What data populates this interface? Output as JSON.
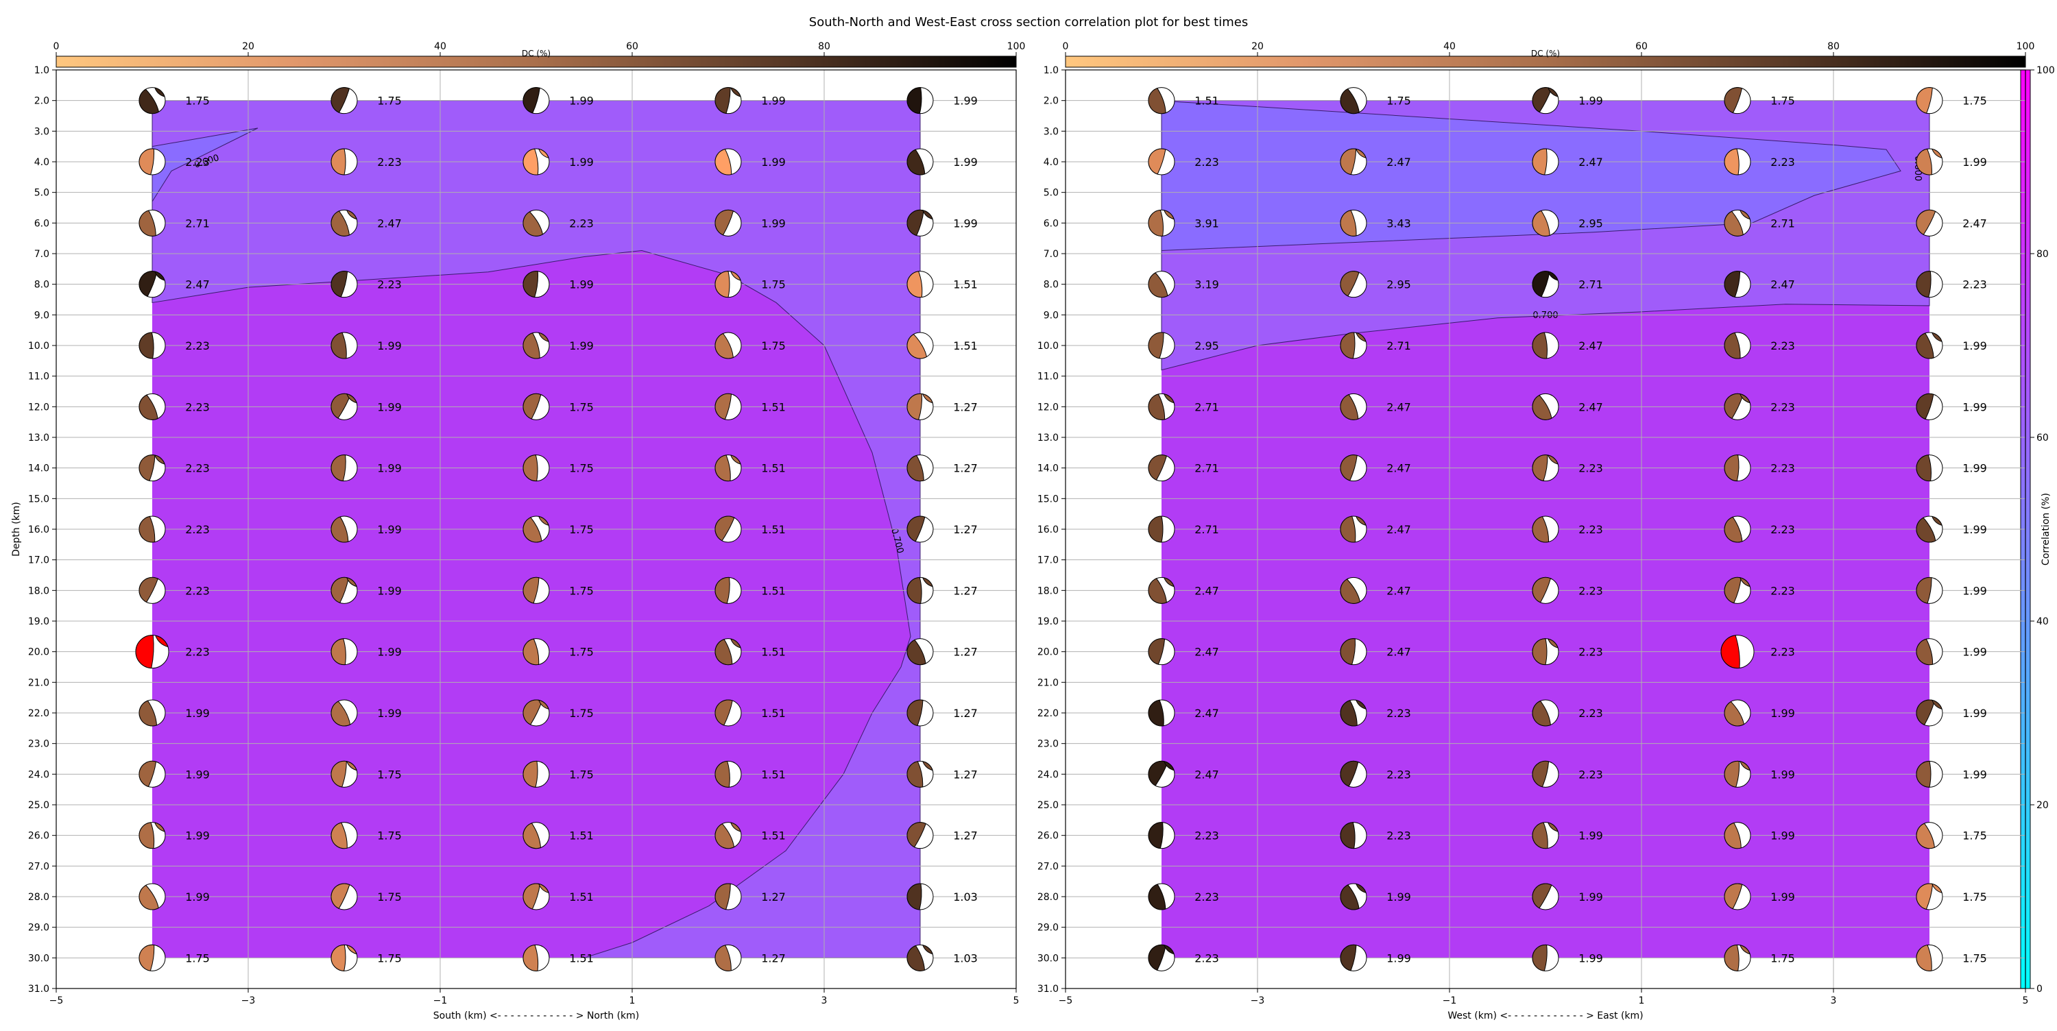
{
  "title": "South-North and West-East cross section correlation plot for best times",
  "dc_colorbar": {
    "label": "DC (%)",
    "ticks": [
      "0",
      "20",
      "40",
      "60",
      "80",
      "100"
    ],
    "colormap": "copper_r",
    "range": [
      0,
      100
    ]
  },
  "correlation_colorbar": {
    "label": "Correlation (%)",
    "ticks": [
      "0",
      "20",
      "40",
      "60",
      "80",
      "100"
    ],
    "colormap": "cool",
    "range": [
      0,
      100
    ]
  },
  "chart_data": [
    {
      "type": "heatmap",
      "panel": "south-north",
      "xlabel": "South (km) <- - - - - - - - - - - - > North (km)",
      "ylabel": "Depth (km)",
      "xlim": [
        -5,
        5
      ],
      "ylim": [
        31,
        1
      ],
      "x_ticks": [
        "−5",
        "−3",
        "−1",
        "1",
        "3",
        "5"
      ],
      "y_ticks": [
        "1.0",
        "2.0",
        "3.0",
        "4.0",
        "5.0",
        "6.0",
        "7.0",
        "8.0",
        "9.0",
        "10.0",
        "11.0",
        "12.0",
        "13.0",
        "14.0",
        "15.0",
        "16.0",
        "17.0",
        "18.0",
        "19.0",
        "20.0",
        "21.0",
        "22.0",
        "23.0",
        "24.0",
        "25.0",
        "26.0",
        "27.0",
        "28.0",
        "29.0",
        "30.0",
        "31.0"
      ],
      "grid": true,
      "x": [
        -4,
        -2,
        0,
        2,
        4
      ],
      "depths": [
        2,
        4,
        6,
        8,
        10,
        12,
        14,
        16,
        18,
        20,
        22,
        24,
        26,
        28,
        30
      ],
      "time_labels": [
        [
          "1.75",
          "1.75",
          "1.99",
          "1.99",
          "1.99"
        ],
        [
          "2.23",
          "2.23",
          "1.99",
          "1.99",
          "1.99"
        ],
        [
          "2.71",
          "2.47",
          "2.23",
          "1.99",
          "1.99"
        ],
        [
          "2.47",
          "2.23",
          "1.99",
          "1.75",
          "1.51"
        ],
        [
          "2.23",
          "1.99",
          "1.99",
          "1.75",
          "1.51"
        ],
        [
          "2.23",
          "1.99",
          "1.75",
          "1.51",
          "1.27"
        ],
        [
          "2.23",
          "1.99",
          "1.75",
          "1.51",
          "1.27"
        ],
        [
          "2.23",
          "1.99",
          "1.75",
          "1.51",
          "1.27"
        ],
        [
          "2.23",
          "1.99",
          "1.75",
          "1.51",
          "1.27"
        ],
        [
          "2.23",
          "1.99",
          "1.75",
          "1.51",
          "1.27"
        ],
        [
          "1.99",
          "1.99",
          "1.75",
          "1.51",
          "1.27"
        ],
        [
          "1.99",
          "1.75",
          "1.75",
          "1.51",
          "1.27"
        ],
        [
          "1.99",
          "1.75",
          "1.51",
          "1.51",
          "1.27"
        ],
        [
          "1.99",
          "1.75",
          "1.51",
          "1.27",
          "1.03"
        ],
        [
          "1.75",
          "1.75",
          "1.51",
          "1.27",
          "1.03"
        ]
      ],
      "dc_percent": [
        [
          80,
          75,
          85,
          70,
          90
        ],
        [
          30,
          30,
          20,
          20,
          80
        ],
        [
          50,
          50,
          50,
          50,
          75
        ],
        [
          85,
          75,
          70,
          30,
          25
        ],
        [
          70,
          60,
          50,
          40,
          30
        ],
        [
          60,
          55,
          50,
          45,
          40
        ],
        [
          55,
          50,
          45,
          45,
          60
        ],
        [
          55,
          50,
          45,
          50,
          65
        ],
        [
          55,
          50,
          45,
          50,
          65
        ],
        [
          50,
          40,
          40,
          55,
          70
        ],
        [
          55,
          45,
          45,
          50,
          65
        ],
        [
          50,
          40,
          40,
          50,
          60
        ],
        [
          45,
          35,
          40,
          45,
          60
        ],
        [
          40,
          35,
          40,
          50,
          75
        ],
        [
          35,
          30,
          35,
          45,
          70
        ]
      ],
      "best_solution": {
        "x": -4,
        "depth": 20
      },
      "contour_labels": [
        "0.600",
        "0.700"
      ]
    },
    {
      "type": "heatmap",
      "panel": "west-east",
      "xlabel": "West (km) <- - - - - - - - - - - - > East (km)",
      "ylabel": "",
      "xlim": [
        -5,
        5
      ],
      "ylim": [
        31,
        1
      ],
      "x_ticks": [
        "−5",
        "−3",
        "−1",
        "1",
        "3",
        "5"
      ],
      "y_ticks": [
        "1.0",
        "2.0",
        "3.0",
        "4.0",
        "5.0",
        "6.0",
        "7.0",
        "8.0",
        "9.0",
        "10.0",
        "11.0",
        "12.0",
        "13.0",
        "14.0",
        "15.0",
        "16.0",
        "17.0",
        "18.0",
        "19.0",
        "20.0",
        "21.0",
        "22.0",
        "23.0",
        "24.0",
        "25.0",
        "26.0",
        "27.0",
        "28.0",
        "29.0",
        "30.0",
        "31.0"
      ],
      "grid": true,
      "x": [
        -4,
        -2,
        0,
        2,
        4
      ],
      "depths": [
        2,
        4,
        6,
        8,
        10,
        12,
        14,
        16,
        18,
        20,
        22,
        24,
        26,
        28,
        30
      ],
      "time_labels": [
        [
          "1.51",
          "1.75",
          "1.99",
          "1.75",
          "1.75"
        ],
        [
          "2.23",
          "2.47",
          "2.47",
          "2.23",
          "1.99"
        ],
        [
          "3.91",
          "3.43",
          "2.95",
          "2.71",
          "2.47"
        ],
        [
          "3.19",
          "2.95",
          "2.71",
          "2.47",
          "2.23"
        ],
        [
          "2.95",
          "2.71",
          "2.47",
          "2.23",
          "1.99"
        ],
        [
          "2.71",
          "2.47",
          "2.47",
          "2.23",
          "1.99"
        ],
        [
          "2.71",
          "2.47",
          "2.23",
          "2.23",
          "1.99"
        ],
        [
          "2.71",
          "2.47",
          "2.23",
          "2.23",
          "1.99"
        ],
        [
          "2.47",
          "2.47",
          "2.23",
          "2.23",
          "1.99"
        ],
        [
          "2.47",
          "2.47",
          "2.23",
          "2.23",
          "1.99"
        ],
        [
          "2.47",
          "2.23",
          "2.23",
          "1.99",
          "1.99"
        ],
        [
          "2.47",
          "2.23",
          "2.23",
          "1.99",
          "1.99"
        ],
        [
          "2.23",
          "2.23",
          "1.99",
          "1.99",
          "1.75"
        ],
        [
          "2.23",
          "1.99",
          "1.99",
          "1.99",
          "1.75"
        ],
        [
          "2.23",
          "1.99",
          "1.99",
          "1.75",
          "1.75"
        ]
      ],
      "dc_percent": [
        [
          60,
          80,
          75,
          60,
          30
        ],
        [
          30,
          40,
          30,
          25,
          35
        ],
        [
          45,
          40,
          35,
          45,
          40
        ],
        [
          55,
          55,
          90,
          80,
          70
        ],
        [
          55,
          55,
          60,
          60,
          65
        ],
        [
          60,
          55,
          55,
          55,
          70
        ],
        [
          60,
          55,
          50,
          50,
          65
        ],
        [
          65,
          55,
          50,
          50,
          65
        ],
        [
          60,
          55,
          50,
          50,
          55
        ],
        [
          65,
          60,
          50,
          70,
          55
        ],
        [
          85,
          75,
          60,
          45,
          65
        ],
        [
          85,
          75,
          60,
          45,
          55
        ],
        [
          85,
          75,
          55,
          40,
          35
        ],
        [
          85,
          75,
          60,
          40,
          30
        ],
        [
          85,
          75,
          60,
          45,
          35
        ]
      ],
      "best_solution": {
        "x": 2,
        "depth": 20
      },
      "contour_labels": [
        "0.600",
        "0.700"
      ]
    }
  ]
}
